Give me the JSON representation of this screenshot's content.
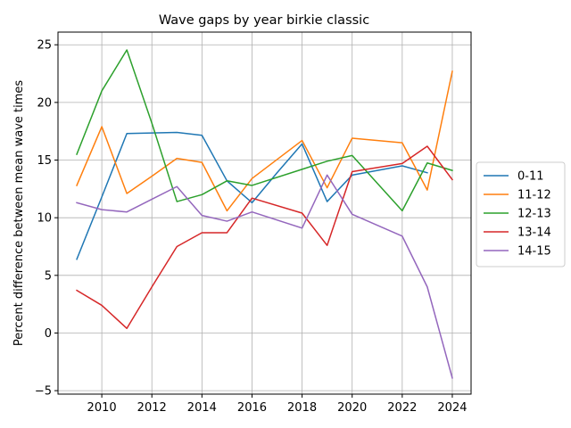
{
  "chart_data": {
    "type": "line",
    "title": "Wave gaps by year birkie classic",
    "xlabel": "",
    "ylabel": "Percent difference between mean wave times",
    "xlim": [
      2008.25,
      2024.75
    ],
    "ylim": [
      -5.3,
      26.1
    ],
    "xticks": [
      2010,
      2012,
      2014,
      2016,
      2018,
      2020,
      2022,
      2024
    ],
    "yticks": [
      -5,
      0,
      5,
      10,
      15,
      20,
      25
    ],
    "grid": true,
    "legend_position": "center-right outside",
    "series": [
      {
        "name": "0-11",
        "color": "#1f77b4",
        "points": [
          [
            2009,
            6.4
          ],
          [
            2010,
            11.8
          ],
          [
            2011,
            17.3
          ],
          [
            2012,
            17.35
          ],
          [
            2013,
            17.4
          ],
          [
            2014,
            17.15
          ],
          [
            2015,
            13.2
          ],
          [
            2016,
            11.3
          ],
          [
            2017,
            13.9
          ],
          [
            2018,
            16.4
          ],
          [
            2019,
            11.4
          ],
          [
            2020,
            13.7
          ],
          [
            2022,
            14.5
          ],
          [
            2023,
            13.9
          ]
        ]
      },
      {
        "name": "11-12",
        "color": "#ff7f0e",
        "points": [
          [
            2009,
            12.8
          ],
          [
            2010,
            17.9
          ],
          [
            2011,
            12.1
          ],
          [
            2012,
            13.6
          ],
          [
            2013,
            15.15
          ],
          [
            2014,
            14.8
          ],
          [
            2015,
            10.6
          ],
          [
            2016,
            13.4
          ],
          [
            2018,
            16.7
          ],
          [
            2019,
            12.6
          ],
          [
            2020,
            16.9
          ],
          [
            2022,
            16.5
          ],
          [
            2023,
            12.4
          ],
          [
            2024,
            22.7
          ]
        ]
      },
      {
        "name": "12-13",
        "color": "#2ca02c",
        "points": [
          [
            2009,
            15.5
          ],
          [
            2010,
            21.0
          ],
          [
            2011,
            24.55
          ],
          [
            2012,
            18.2
          ],
          [
            2013,
            11.4
          ],
          [
            2014,
            12.0
          ],
          [
            2015,
            13.2
          ],
          [
            2016,
            12.8
          ],
          [
            2018,
            14.2
          ],
          [
            2019,
            14.9
          ],
          [
            2020,
            15.4
          ],
          [
            2022,
            10.6
          ],
          [
            2023,
            14.75
          ],
          [
            2024,
            14.1
          ]
        ]
      },
      {
        "name": "13-14",
        "color": "#d62728",
        "points": [
          [
            2009,
            3.7
          ],
          [
            2010,
            2.4
          ],
          [
            2011,
            0.4
          ],
          [
            2012,
            4.0
          ],
          [
            2013,
            7.5
          ],
          [
            2014,
            8.7
          ],
          [
            2015,
            8.7
          ],
          [
            2016,
            11.7
          ],
          [
            2018,
            10.4
          ],
          [
            2019,
            7.6
          ],
          [
            2020,
            14.0
          ],
          [
            2022,
            14.7
          ],
          [
            2023,
            16.2
          ],
          [
            2024,
            13.3
          ]
        ]
      },
      {
        "name": "14-15",
        "color": "#9467bd",
        "points": [
          [
            2009,
            11.3
          ],
          [
            2010,
            10.7
          ],
          [
            2011,
            10.5
          ],
          [
            2012,
            11.6
          ],
          [
            2013,
            12.7
          ],
          [
            2014,
            10.2
          ],
          [
            2015,
            9.7
          ],
          [
            2016,
            10.5
          ],
          [
            2018,
            9.1
          ],
          [
            2019,
            13.7
          ],
          [
            2020,
            10.3
          ],
          [
            2022,
            8.4
          ],
          [
            2023,
            4.0
          ],
          [
            2024,
            -3.9
          ]
        ]
      }
    ]
  }
}
